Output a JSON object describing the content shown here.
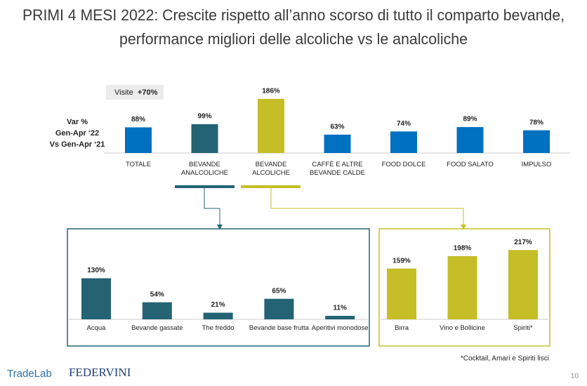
{
  "title": [
    "PRIMI 4 MESI 2022: Crescite rispetto all’anno scorso di tutto il comparto bevande,",
    "performance migliori delle alcoliche vs le analcoliche"
  ],
  "badge": {
    "label": "Visite",
    "value": "+70%"
  },
  "chart_data": [
    {
      "type": "bar",
      "y_label": [
        "Var %",
        "Gen-Apr ‘22",
        "Vs Gen-Apr ‘21"
      ],
      "categories": [
        "TOTALE",
        "BEVANDE ANALCOLICHE",
        "BEVANDE ALCOLICHE",
        "CAFFÈ E ALTRE BEVANDE CALDE",
        "FOOD DOLCE",
        "FOOD SALATO",
        "IMPULSO"
      ],
      "values": [
        88,
        99,
        186,
        63,
        74,
        89,
        78
      ],
      "value_labels": [
        "88%",
        "99%",
        "186%",
        "63%",
        "74%",
        "89%",
        "78%"
      ],
      "colors": [
        "#0070c0",
        "#236374",
        "#c5be27",
        "#0070c0",
        "#0070c0",
        "#0070c0",
        "#0070c0"
      ]
    },
    {
      "type": "bar",
      "categories": [
        "Acqua",
        "Bevande gassate",
        "The freddo",
        "Bevande base frutta",
        "Aperitivi monodose"
      ],
      "values": [
        130,
        54,
        21,
        65,
        11
      ],
      "value_labels": [
        "130%",
        "54%",
        "21%",
        "65%",
        "11%"
      ],
      "color": "#236374"
    },
    {
      "type": "bar",
      "categories": [
        "Birra",
        "Vino e Bollicine",
        "Spiriti*"
      ],
      "values": [
        159,
        198,
        217
      ],
      "value_labels": [
        "159%",
        "198%",
        "217%"
      ],
      "color": "#c5be27"
    }
  ],
  "footnote": "*Cocktail, Amari e Spiriti lisci",
  "page_number": "10",
  "logos": [
    "TradeLab",
    "FEDERVINI"
  ]
}
